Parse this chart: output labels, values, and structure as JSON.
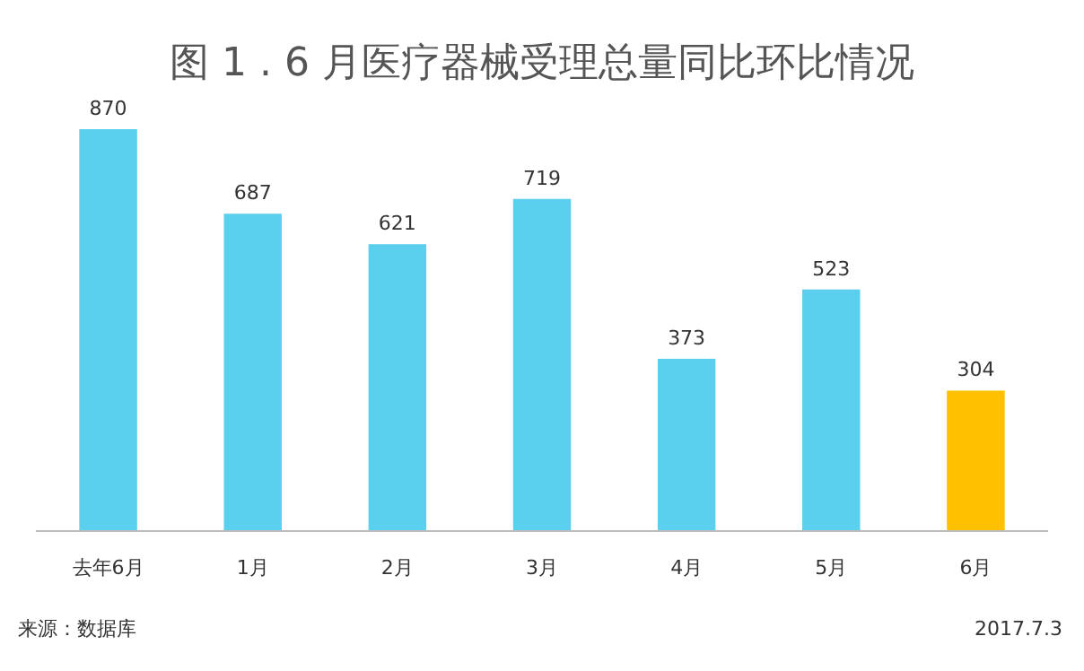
{
  "chart_data": {
    "type": "bar",
    "title": "图 1 . 6 月医疗器械受理总量同比环比情况",
    "categories": [
      "去年6月",
      "1月",
      "2月",
      "3月",
      "4月",
      "5月",
      "6月"
    ],
    "values": [
      870,
      687,
      621,
      719,
      373,
      523,
      304
    ],
    "colors": [
      "#5bcfee",
      "#5bcfee",
      "#5bcfee",
      "#5bcfee",
      "#5bcfee",
      "#5bcfee",
      "#ffc000"
    ],
    "data_labels": true,
    "annotations": [
      "来源：数据库",
      "2017.7.3"
    ]
  }
}
